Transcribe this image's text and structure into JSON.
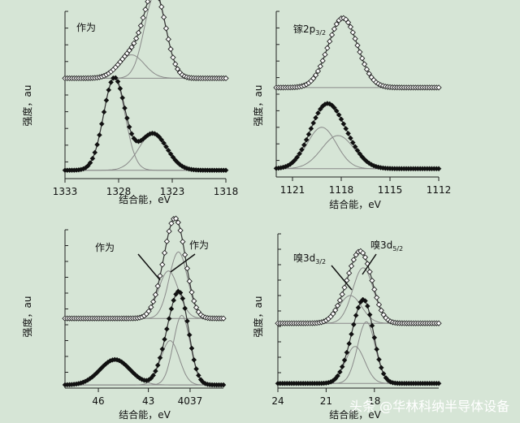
{
  "watermark": "头条 @华林科纳半导体设备",
  "chart_data": [
    {
      "type": "line",
      "panel": "top-left",
      "title": "作为",
      "annotations": [],
      "xlabel": "结合能，eV",
      "ylabel": "强度，au",
      "xlim": [
        1333,
        1318
      ],
      "x_reversed": true,
      "xticks": [
        "1333",
        "1328",
        "1323",
        "1318"
      ],
      "xtick_values": [
        1333,
        1328,
        1323,
        1318
      ],
      "upper": {
        "baseline": 0.6,
        "peaks": [
          [
            1326.8,
            0.14,
            1.2
          ],
          [
            1324.6,
            0.5,
            1.0
          ]
        ]
      },
      "lower": {
        "baseline": 0.05,
        "peaks": [
          [
            1328.4,
            0.55,
            1.0
          ],
          [
            1324.8,
            0.22,
            1.3
          ]
        ]
      }
    },
    {
      "type": "line",
      "panel": "top-right",
      "title": "镓2p3/2",
      "annotations": [],
      "xlabel": "结合能，eV",
      "ylabel": "强度，au",
      "xlim": [
        1122,
        1112
      ],
      "x_reversed": true,
      "xticks": [
        "1121",
        "1118",
        "1115",
        "1112"
      ],
      "xtick_values": [
        1121,
        1118,
        1115,
        1112
      ],
      "upper": {
        "baseline": 0.54,
        "peaks": [
          [
            1117.9,
            0.42,
            0.9
          ]
        ]
      },
      "lower": {
        "baseline": 0.05,
        "peaks": [
          [
            1119.2,
            0.25,
            0.9
          ],
          [
            1118.2,
            0.2,
            1.0
          ]
        ]
      }
    },
    {
      "type": "line",
      "panel": "bottom-left",
      "title": "",
      "annotations": [
        "作为",
        "作为"
      ],
      "xlabel": "结合能，eV",
      "ylabel": "强度，au",
      "xlim": [
        48,
        38.5
      ],
      "x_reversed": true,
      "xticks": [
        "46",
        "43",
        "4037"
      ],
      "xtick_values": [
        46,
        43,
        40.5
      ],
      "upper": {
        "baseline": 0.44,
        "peaks": [
          [
            41.8,
            0.3,
            0.6
          ],
          [
            41.2,
            0.42,
            0.55
          ]
        ]
      },
      "lower": {
        "baseline": 0.02,
        "peaks": [
          [
            45.0,
            0.16,
            0.9
          ],
          [
            41.7,
            0.28,
            0.55
          ],
          [
            41.0,
            0.44,
            0.5
          ]
        ]
      }
    },
    {
      "type": "line",
      "panel": "bottom-right",
      "title": "",
      "annotations": [
        "嗅3d3/2",
        "嗅3d5/2"
      ],
      "xlabel": "结合能，eV",
      "ylabel": "强度，au",
      "xlim": [
        24,
        14
      ],
      "x_reversed": true,
      "xticks": [
        "24",
        "21",
        "18"
      ],
      "xtick_values": [
        24,
        21,
        18
      ],
      "upper": {
        "baseline": 0.42,
        "peaks": [
          [
            19.5,
            0.18,
            0.7
          ],
          [
            18.7,
            0.36,
            0.65
          ]
        ]
      },
      "lower": {
        "baseline": 0.03,
        "peaks": [
          [
            19.2,
            0.24,
            0.6
          ],
          [
            18.5,
            0.4,
            0.55
          ]
        ]
      }
    }
  ]
}
